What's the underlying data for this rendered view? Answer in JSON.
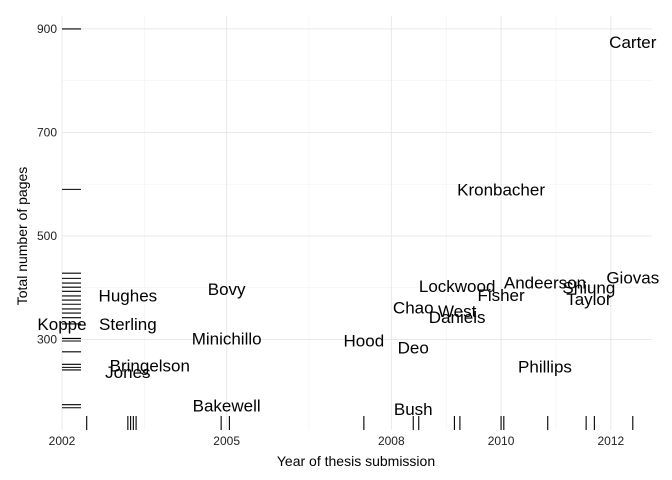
{
  "chart_data": {
    "type": "scatter",
    "title": "",
    "xlabel": "Year of thesis submission",
    "ylabel": "Total number of pages",
    "xlim": [
      2002,
      2012.75
    ],
    "ylim": [
      125,
      925
    ],
    "xticks": [
      2002,
      2005,
      2008,
      2010,
      2012
    ],
    "yticks": [
      300,
      500,
      700,
      900
    ],
    "grid": true,
    "legend": "none",
    "points": [
      {
        "label": "Carter",
        "x": 2012.4,
        "y": 875
      },
      {
        "label": "Kronbacher",
        "x": 2010.0,
        "y": 590
      },
      {
        "label": "Giovas",
        "x": 2012.4,
        "y": 420
      },
      {
        "label": "Andeerson",
        "x": 2010.8,
        "y": 410
      },
      {
        "label": "Lockwood",
        "x": 2009.2,
        "y": 403
      },
      {
        "label": "Shiung",
        "x": 2011.6,
        "y": 400
      },
      {
        "label": "Bovy",
        "x": 2005.0,
        "y": 397
      },
      {
        "label": "Fisher",
        "x": 2010.0,
        "y": 386
      },
      {
        "label": "Hughes",
        "x": 2003.2,
        "y": 385
      },
      {
        "label": "Taylor",
        "x": 2011.6,
        "y": 378
      },
      {
        "label": "Chao",
        "x": 2008.4,
        "y": 362
      },
      {
        "label": "West",
        "x": 2009.2,
        "y": 355
      },
      {
        "label": "Daniels",
        "x": 2009.2,
        "y": 343
      },
      {
        "label": "Koppe",
        "x": 2002.0,
        "y": 330
      },
      {
        "label": "Sterling",
        "x": 2003.2,
        "y": 330
      },
      {
        "label": "Minichillo",
        "x": 2005.0,
        "y": 302
      },
      {
        "label": "Hood",
        "x": 2007.5,
        "y": 298
      },
      {
        "label": "Deo",
        "x": 2008.4,
        "y": 284
      },
      {
        "label": "Bringelson",
        "x": 2003.6,
        "y": 250
      },
      {
        "label": "Phillips",
        "x": 2010.8,
        "y": 248
      },
      {
        "label": "Jones",
        "x": 2003.2,
        "y": 237
      },
      {
        "label": "Bakewell",
        "x": 2005.0,
        "y": 172
      },
      {
        "label": "Bush",
        "x": 2008.4,
        "y": 166
      }
    ],
    "rug_x": [
      2002.45,
      2003.2,
      2003.25,
      2003.3,
      2003.35,
      2004.9,
      2005.05,
      2007.5,
      2008.4,
      2008.5,
      2009.15,
      2009.25,
      2010.0,
      2010.05,
      2010.85,
      2011.55,
      2011.7,
      2012.4
    ],
    "rug_y": [
      900,
      590,
      428,
      418,
      409,
      401,
      393,
      384,
      376,
      368,
      359,
      351,
      342,
      330,
      302,
      297,
      276,
      252,
      246,
      241,
      174,
      168
    ]
  }
}
